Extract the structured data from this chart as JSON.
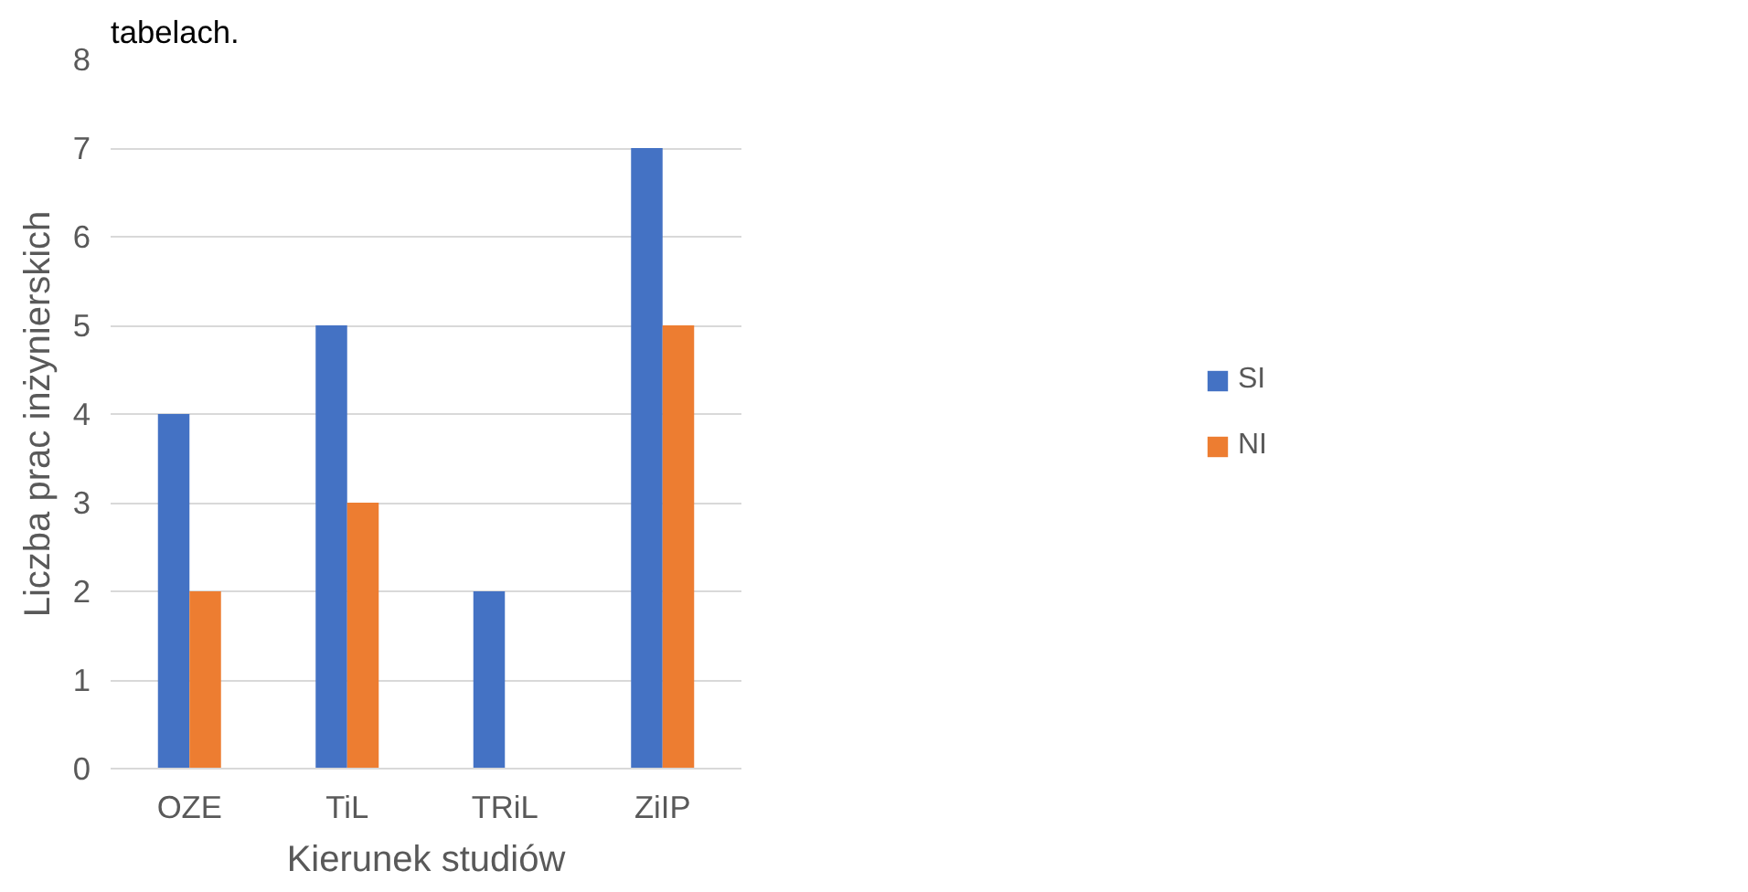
{
  "chart_data": {
    "type": "bar",
    "categories": [
      "OZE",
      "TiL",
      "TRiL",
      "ZiIP"
    ],
    "series": [
      {
        "name": "SI",
        "color": "#4472c4",
        "values": [
          4,
          5,
          2,
          7
        ]
      },
      {
        "name": "NI",
        "color": "#ed7d31",
        "values": [
          2,
          3,
          0,
          5
        ]
      }
    ],
    "xlabel": "Kierunek studiów",
    "ylabel": "Liczba prac inżynierskich",
    "ylim": [
      0,
      8
    ],
    "yticks": [
      0,
      1,
      2,
      3,
      4,
      5,
      6,
      7,
      8
    ],
    "grid": "y",
    "legend": "right",
    "annotations": [
      "tabelach."
    ]
  }
}
